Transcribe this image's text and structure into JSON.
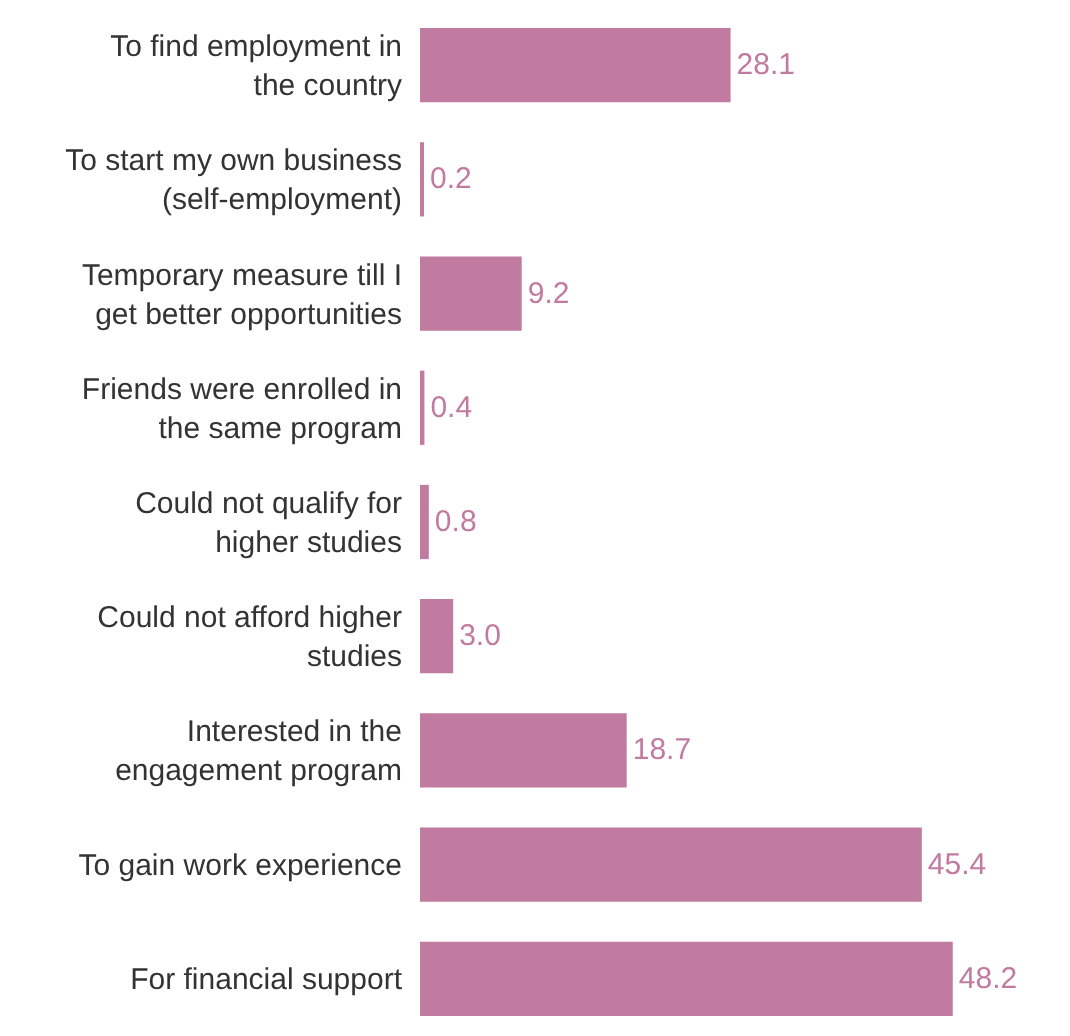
{
  "chart_data": {
    "type": "bar",
    "orientation": "horizontal",
    "data_labels": true,
    "categories": [
      "To find employment in the country",
      "To start my own business (self-employment)",
      "Temporary measure till I get better opportunities",
      "Friends were enrolled in the same program",
      "Could not qualify for higher studies",
      "Could not afford higher studies",
      "Interested in the engagement program",
      "To gain work experience",
      "For financial support"
    ],
    "values": [
      28.1,
      0.2,
      9.2,
      0.4,
      0.8,
      3.0,
      18.7,
      45.4,
      48.2
    ],
    "value_labels": [
      "28.1",
      "0.2",
      "9.2",
      "0.4",
      "0.8",
      "3.0",
      "18.7",
      "45.4",
      "48.2"
    ],
    "color": "#c27ba0"
  }
}
